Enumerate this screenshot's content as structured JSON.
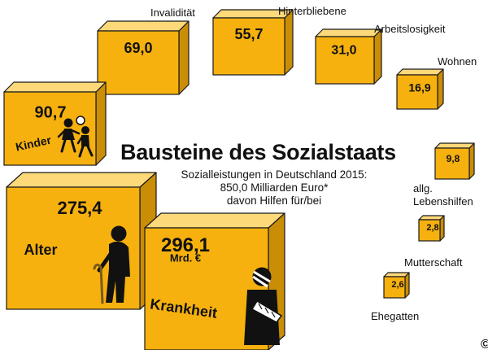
{
  "title": "Bausteine des Sozialstaats",
  "subtitle": [
    "Sozialleistungen in Deutschland 2015:",
    "850,0 Milliarden Euro*",
    "davon Hilfen für/bei"
  ],
  "unit_label": "Mrd. €",
  "colors": {
    "front": "#f6b10f",
    "top": "#fdd97a",
    "side": "#c98d06",
    "edge": "#1a1a1a"
  },
  "chart_data": {
    "type": "bar",
    "title": "Bausteine des Sozialstaats",
    "subtitle": "Sozialleistungen in Deutschland 2015: 850,0 Milliarden Euro* davon Hilfen für/bei",
    "unit": "Mrd. €",
    "total": "850,0",
    "categories": [
      "Krankheit",
      "Alter",
      "Kinder",
      "Invalidität",
      "Hinterbliebene",
      "Arbeitslosigkeit",
      "Wohnen",
      "allg. Lebenshilfen",
      "Mutterschaft",
      "Ehegatten"
    ],
    "values": [
      296.1,
      275.4,
      90.7,
      69.0,
      55.7,
      31.0,
      16.9,
      9.8,
      2.8,
      2.6
    ],
    "value_labels": [
      "296,1",
      "275,4",
      "90,7",
      "69,0",
      "55,7",
      "31,0",
      "16,9",
      "9,8",
      "2,8",
      "2,6"
    ],
    "icons": [
      "broken-arm-icon",
      "elderly-person-with-cane-icon",
      "running-children-icon",
      "",
      "",
      "",
      "",
      "",
      "",
      ""
    ]
  }
}
